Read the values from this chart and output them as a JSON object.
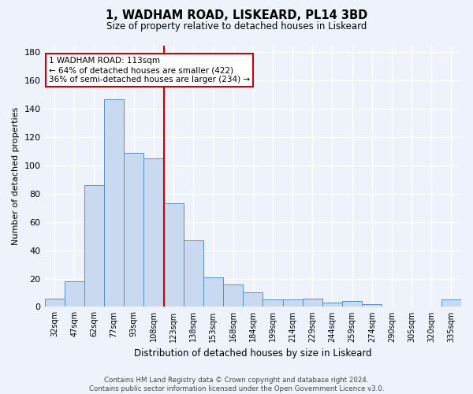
{
  "title": "1, WADHAM ROAD, LISKEARD, PL14 3BD",
  "subtitle": "Size of property relative to detached houses in Liskeard",
  "xlabel": "Distribution of detached houses by size in Liskeard",
  "ylabel": "Number of detached properties",
  "footnote": "Contains HM Land Registry data © Crown copyright and database right 2024.\nContains public sector information licensed under the Open Government Licence v3.0.",
  "bar_labels": [
    "32sqm",
    "47sqm",
    "62sqm",
    "77sqm",
    "93sqm",
    "108sqm",
    "123sqm",
    "138sqm",
    "153sqm",
    "168sqm",
    "184sqm",
    "199sqm",
    "214sqm",
    "229sqm",
    "244sqm",
    "259sqm",
    "274sqm",
    "290sqm",
    "305sqm",
    "320sqm",
    "335sqm"
  ],
  "bar_values": [
    6,
    18,
    86,
    147,
    109,
    105,
    73,
    47,
    21,
    16,
    10,
    5,
    5,
    6,
    3,
    4,
    2,
    0,
    0,
    0,
    5
  ],
  "bar_color": "#c9d9f0",
  "bar_edge_color": "#5b8dc8",
  "background_color": "#eef2fb",
  "grid_color": "#ffffff",
  "vline_x_index": 6,
  "vline_color": "#cc0000",
  "annotation_line1": "1 WADHAM ROAD: 113sqm",
  "annotation_line2": "← 64% of detached houses are smaller (422)",
  "annotation_line3": "36% of semi-detached houses are larger (234) →",
  "annotation_box_color": "#ffffff",
  "annotation_box_edge": "#cc0000",
  "ylim": [
    0,
    185
  ],
  "yticks": [
    0,
    20,
    40,
    60,
    80,
    100,
    120,
    140,
    160,
    180
  ]
}
